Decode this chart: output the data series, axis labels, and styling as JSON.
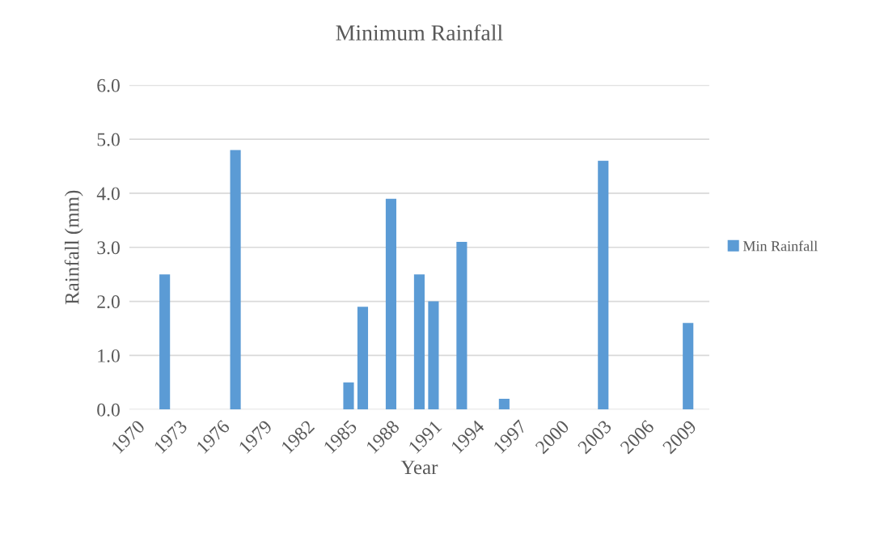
{
  "chart_data": {
    "type": "bar",
    "title": "Minimum Rainfall",
    "xlabel": "Year",
    "ylabel": "Rainfall (mm)",
    "categories": [
      "1970",
      null,
      null,
      "1973",
      null,
      null,
      "1976",
      null,
      null,
      "1979",
      null,
      null,
      "1982",
      null,
      null,
      "1985",
      null,
      null,
      "1988",
      null,
      null,
      "1991",
      null,
      null,
      "1994",
      null,
      null,
      "1997",
      null,
      null,
      "2000",
      null,
      null,
      "2003",
      null,
      null,
      "2006",
      null,
      null,
      "2009",
      null
    ],
    "series": [
      {
        "name": "Min Rainfall",
        "color": "#5b9bd5",
        "values": [
          null,
          null,
          2.5,
          null,
          null,
          null,
          null,
          4.8,
          null,
          null,
          null,
          null,
          null,
          null,
          null,
          0.5,
          1.9,
          null,
          3.9,
          null,
          2.5,
          2.0,
          null,
          3.1,
          null,
          null,
          0.2,
          null,
          null,
          null,
          null,
          null,
          null,
          4.6,
          null,
          null,
          null,
          null,
          null,
          1.6,
          null
        ]
      }
    ],
    "ylim": [
      0,
      6
    ],
    "yticks": [
      {
        "value": 0,
        "label": "0.0"
      },
      {
        "value": 1,
        "label": "1.0"
      },
      {
        "value": 2,
        "label": "2.0"
      },
      {
        "value": 3,
        "label": "3.0"
      },
      {
        "value": 4,
        "label": "4.0"
      },
      {
        "value": 5,
        "label": "5.0"
      },
      {
        "value": 6,
        "label": "6.0"
      }
    ],
    "grid": "y",
    "legend": "right"
  }
}
